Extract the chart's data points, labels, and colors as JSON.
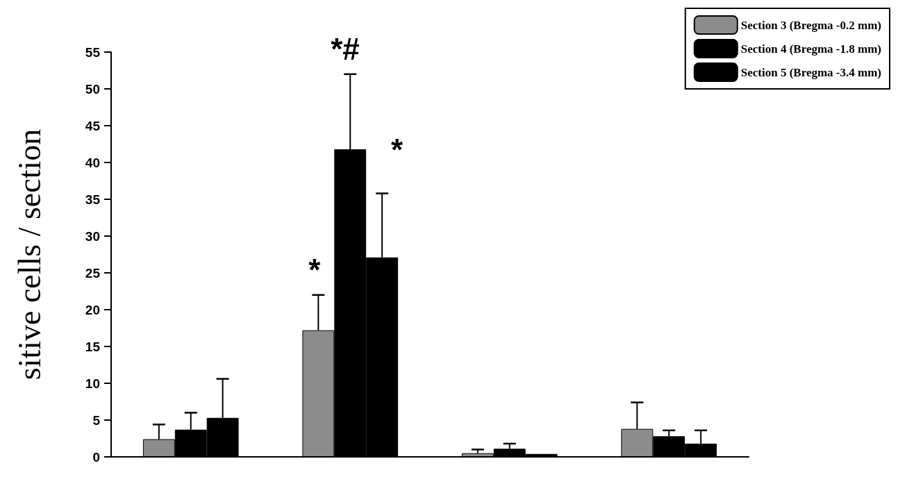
{
  "chart_data": {
    "type": "bar",
    "ylabel": "sitive cells / section",
    "categories": [
      null,
      null,
      null,
      null
    ],
    "series": [
      {
        "name": "Section 3 (Bregma -0.2 mm)",
        "color": "#8c8c8c",
        "values": [
          2.4,
          17.2,
          0.5,
          3.8
        ],
        "errors": [
          [
            2.4,
            4.4
          ],
          [
            17.2,
            22
          ],
          [
            0.5,
            1.0
          ],
          [
            3.8,
            7.4
          ]
        ]
      },
      {
        "name": "Section 4 (Bregma -1.8 mm)",
        "color": "#000000",
        "values": [
          3.7,
          41.8,
          1.1,
          2.8
        ],
        "errors": [
          [
            3.7,
            6
          ],
          [
            41.8,
            52
          ],
          [
            1.1,
            1.8
          ],
          [
            2.8,
            3.6
          ]
        ]
      },
      {
        "name": "Section 5 (Bregma -3.4 mm)",
        "color": "#000000",
        "values": [
          5.3,
          27.1,
          0.4,
          1.8
        ],
        "errors": [
          [
            5.3,
            10.6
          ],
          [
            27.1,
            35.8
          ],
          null,
          [
            1.8,
            3.6
          ]
        ]
      }
    ],
    "annotations": [
      "*",
      "*#",
      "*"
    ],
    "ylim": [
      0,
      55
    ],
    "yticks": [
      0,
      5,
      10,
      15,
      20,
      25,
      30,
      35,
      40,
      45,
      50,
      55
    ],
    "grid": false,
    "legend": "top right"
  }
}
